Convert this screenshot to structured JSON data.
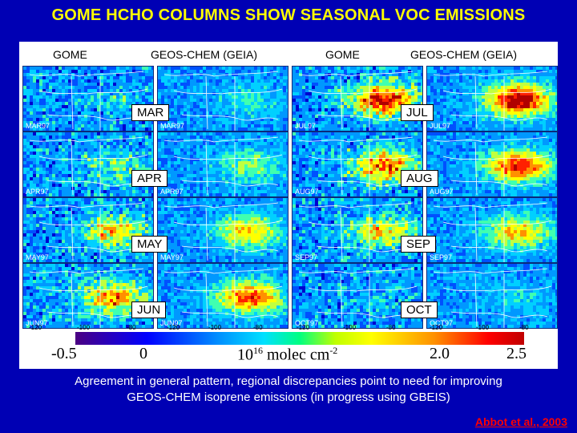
{
  "title": "GOME HCHO COLUMNS SHOW SEASONAL VOC EMISSIONS",
  "column_headers": [
    "GOME",
    "GEOS-CHEM (GEIA)",
    "GOME",
    "GEOS-CHEM (GEIA)"
  ],
  "rows": [
    {
      "left_month": "MAR",
      "left_tags": [
        "MAR97",
        "MAR97"
      ],
      "right_month": "JUL",
      "right_tags": [
        "JUL97",
        "JUL97"
      ]
    },
    {
      "left_month": "APR",
      "left_tags": [
        "APR97",
        "APR97"
      ],
      "right_month": "AUG",
      "right_tags": [
        "AUG97",
        "AUG97"
      ]
    },
    {
      "left_month": "MAY",
      "left_tags": [
        "MAY97",
        "MAY97"
      ],
      "right_month": "SEP",
      "right_tags": [
        "SEP97",
        "SEP97"
      ]
    },
    {
      "left_month": "JUN",
      "left_tags": [
        "JUN97",
        "JUN97"
      ],
      "right_month": "OCT",
      "right_tags": [
        "OCT97",
        "OCT97"
      ]
    }
  ],
  "longitude_ticks": [
    "-120",
    "-100",
    "-80"
  ],
  "colorbar": {
    "tick_values": [
      "-0.5",
      "0",
      "2.0",
      "2.5"
    ],
    "unit_base": "10",
    "unit_exp": "16",
    "unit_text": " molec cm",
    "unit_exp2": "-2"
  },
  "caption_line1": "Agreement in general pattern, regional discrepancies point to need for improving",
  "caption_line2": "GEOS-CHEM isoprene emissions (in progress using GBEIS)",
  "credit": "Abbot et al., 2003",
  "intensity": {
    "gome": [
      0.15,
      0.3,
      0.55,
      0.7,
      0.9,
      0.75,
      0.55,
      0.1
    ],
    "geoschem": [
      0.2,
      0.35,
      0.6,
      0.8,
      1.0,
      0.85,
      0.6,
      0.15
    ]
  }
}
